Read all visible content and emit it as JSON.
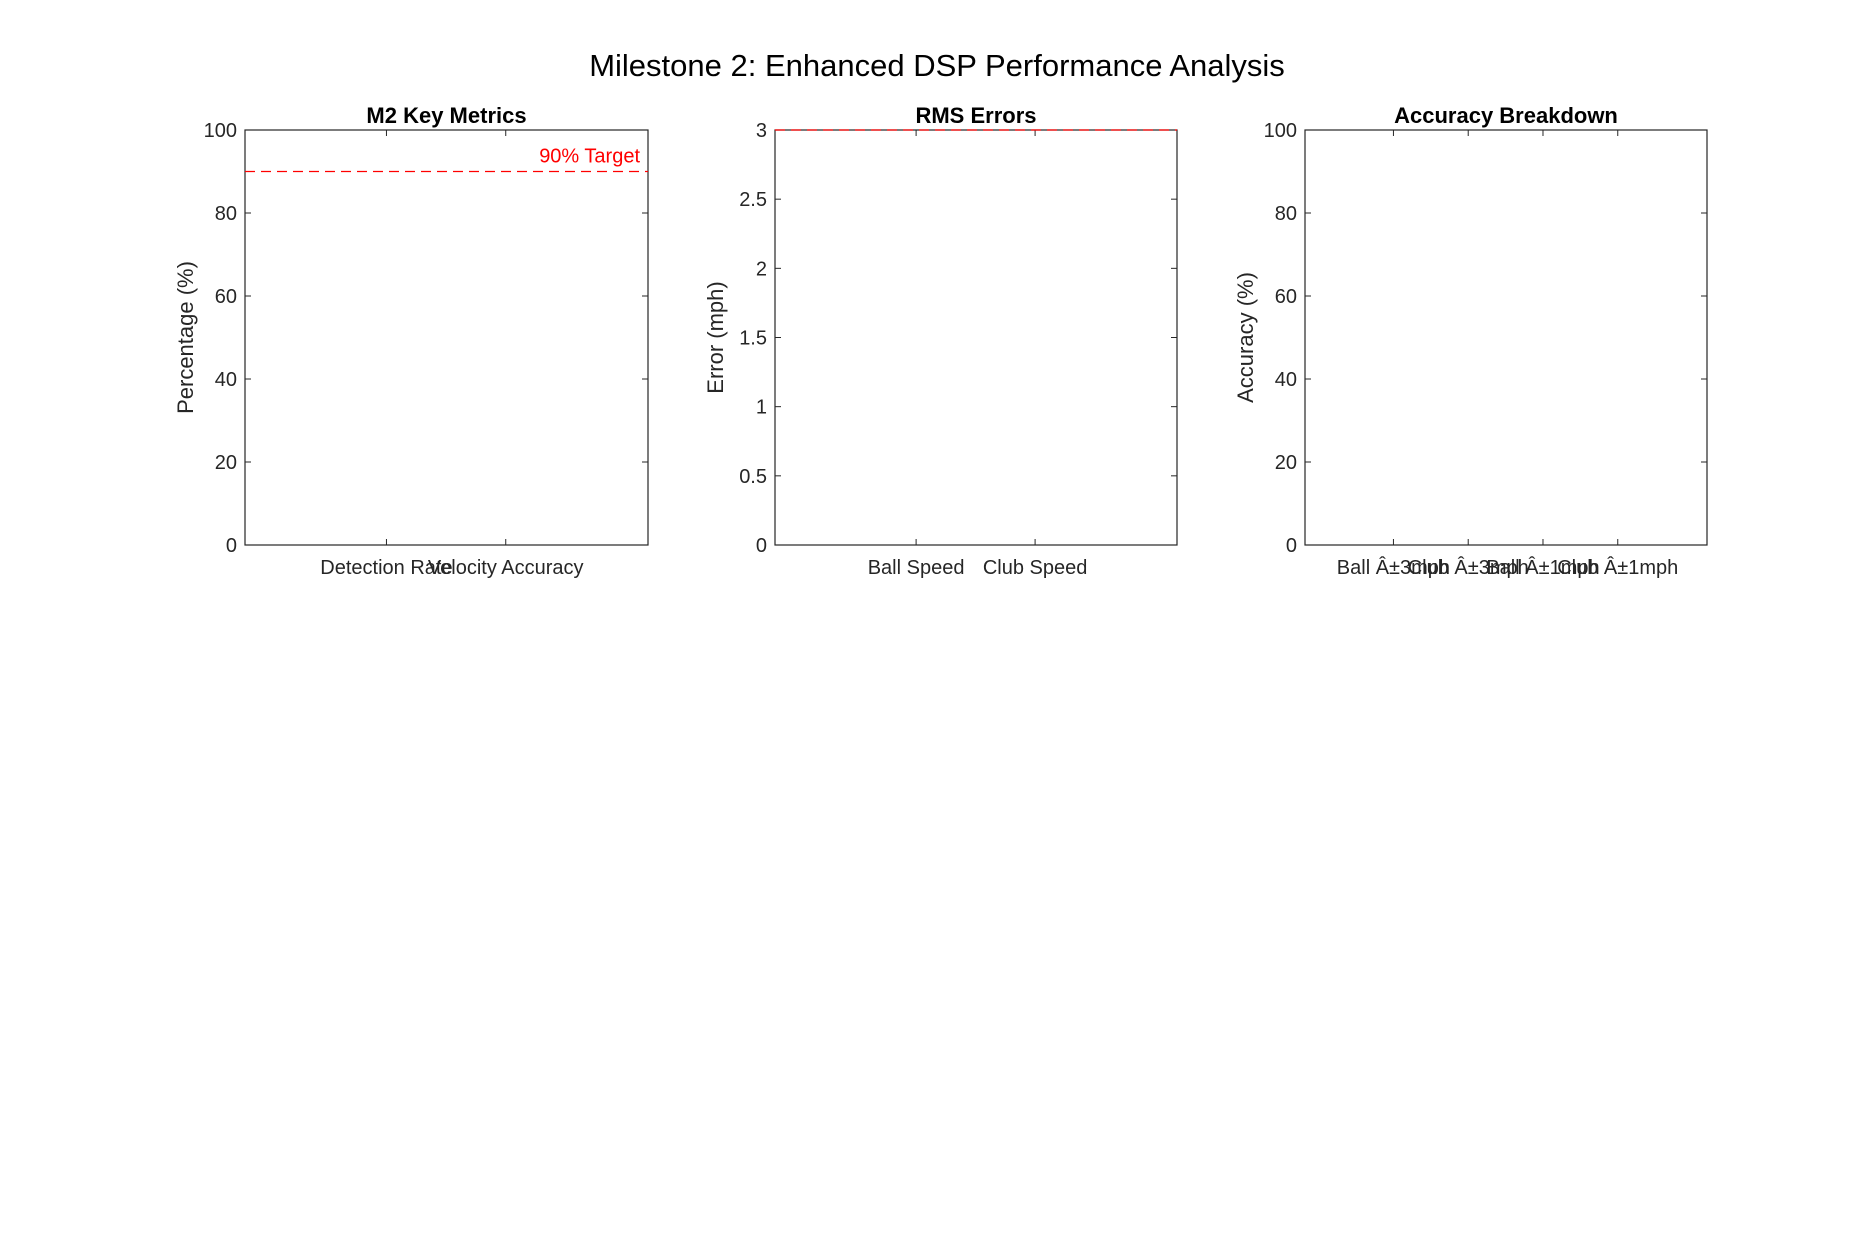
{
  "figure": {
    "title": "Milestone 2: Enhanced DSP Performance Analysis"
  },
  "colors": {
    "axis": "#262626",
    "target_line": "#ff0000"
  },
  "chart_data": [
    {
      "type": "bar",
      "title": "M2 Key Metrics",
      "xlabel": "",
      "ylabel": "Percentage (%)",
      "categories": [
        "Detection Rate",
        "Velocity Accuracy"
      ],
      "values": [
        null,
        null
      ],
      "ylim": [
        0,
        100
      ],
      "yticks": [
        0,
        20,
        40,
        60,
        80,
        100
      ],
      "ytick_labels": [
        "0",
        "20",
        "40",
        "60",
        "80",
        "100"
      ],
      "grid": false,
      "reference_line": {
        "y": 90,
        "label": "90% Target",
        "color": "#ff0000",
        "style": "dashed"
      }
    },
    {
      "type": "bar",
      "title": "RMS Errors",
      "xlabel": "",
      "ylabel": "Error (mph)",
      "categories": [
        "Ball Speed",
        "Club Speed"
      ],
      "values": [
        null,
        null
      ],
      "ylim": [
        0,
        3
      ],
      "yticks": [
        0,
        0.5,
        1,
        1.5,
        2,
        2.5,
        3
      ],
      "ytick_labels": [
        "0",
        "0.5",
        "1",
        "1.5",
        "2",
        "2.5",
        "3"
      ],
      "grid": false,
      "reference_line": {
        "y": 3,
        "label": "",
        "color": "#ff0000",
        "style": "dashed"
      }
    },
    {
      "type": "bar",
      "title": "Accuracy Breakdown",
      "xlabel": "",
      "ylabel": "Accuracy (%)",
      "categories": [
        "Ball Â±3mph",
        "Club Â±3mph",
        "Ball Â±1mph",
        "Club Â±1mph"
      ],
      "values": [
        null,
        null,
        null,
        null
      ],
      "ylim": [
        0,
        100
      ],
      "yticks": [
        0,
        20,
        40,
        60,
        80,
        100
      ],
      "ytick_labels": [
        "0",
        "20",
        "40",
        "60",
        "80",
        "100"
      ],
      "grid": false
    }
  ]
}
